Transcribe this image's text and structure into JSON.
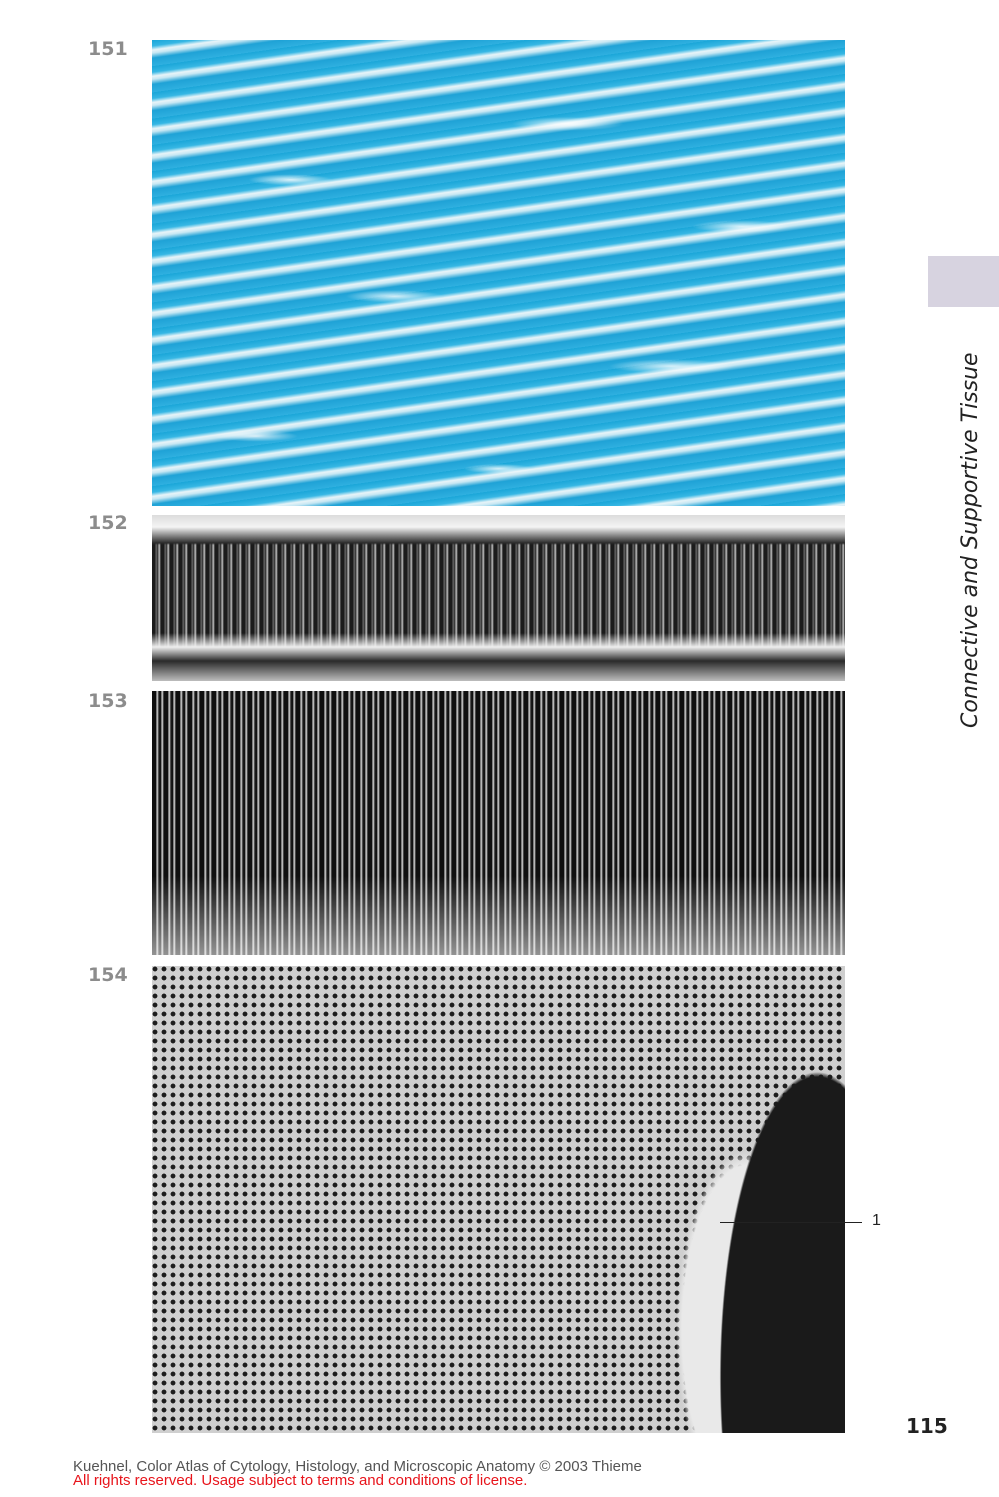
{
  "figures": [
    {
      "number": "151"
    },
    {
      "number": "152"
    },
    {
      "number": "153"
    },
    {
      "number": "154"
    }
  ],
  "annotation": {
    "label": "1"
  },
  "side_title": "Connective and Supportive Tissue",
  "page_number": "115",
  "footer": {
    "line1": "Kuehnel, Color Atlas of Cytology, Histology, and Microscopic Anatomy © 2003 Thieme",
    "line2": "All rights reserved. Usage subject to terms and conditions of license."
  },
  "colors": {
    "tab": "#d7d3e0",
    "footer_warning": "#e8141b",
    "figure_number": "#8c8c8c"
  }
}
